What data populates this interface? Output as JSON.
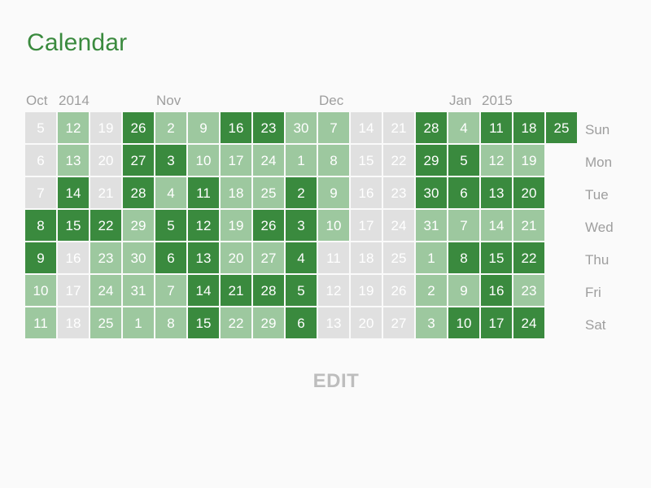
{
  "title": "Calendar",
  "colors": {
    "accent": "#3a8a3e",
    "level_none": "#e0e0e0",
    "level_light": "#9dc89f",
    "level_dark": "#3a8a3e",
    "muted_text": "#9e9e9e",
    "edit_text": "#bdbdbd"
  },
  "month_labels": [
    {
      "text": "Oct",
      "week": 0
    },
    {
      "text": "2014",
      "week": 1
    },
    {
      "text": "Nov",
      "week": 4
    },
    {
      "text": "Dec",
      "week": 9
    },
    {
      "text": "Jan",
      "week": 13
    },
    {
      "text": "2015",
      "week": 14
    }
  ],
  "day_names": [
    "Sun",
    "Mon",
    "Tue",
    "Wed",
    "Thu",
    "Fri",
    "Sat"
  ],
  "weeks": [
    {
      "days": [
        5,
        6,
        7,
        8,
        9,
        10,
        11
      ],
      "levels": [
        0,
        0,
        0,
        2,
        2,
        1,
        1
      ]
    },
    {
      "days": [
        12,
        13,
        14,
        15,
        16,
        17,
        18
      ],
      "levels": [
        1,
        1,
        2,
        2,
        0,
        0,
        0
      ]
    },
    {
      "days": [
        19,
        20,
        21,
        22,
        23,
        24,
        25
      ],
      "levels": [
        0,
        0,
        0,
        2,
        1,
        1,
        1
      ]
    },
    {
      "days": [
        26,
        27,
        28,
        29,
        30,
        31,
        1
      ],
      "levels": [
        2,
        2,
        2,
        1,
        1,
        1,
        1
      ]
    },
    {
      "days": [
        2,
        3,
        4,
        5,
        6,
        7,
        8
      ],
      "levels": [
        1,
        2,
        1,
        2,
        2,
        1,
        1
      ]
    },
    {
      "days": [
        9,
        10,
        11,
        12,
        13,
        14,
        15
      ],
      "levels": [
        1,
        1,
        2,
        2,
        2,
        2,
        2
      ]
    },
    {
      "days": [
        16,
        17,
        18,
        19,
        20,
        21,
        22
      ],
      "levels": [
        2,
        1,
        1,
        1,
        1,
        2,
        1
      ]
    },
    {
      "days": [
        23,
        24,
        25,
        26,
        27,
        28,
        29
      ],
      "levels": [
        2,
        1,
        1,
        2,
        1,
        2,
        1
      ]
    },
    {
      "days": [
        30,
        1,
        2,
        3,
        4,
        5,
        6
      ],
      "levels": [
        1,
        1,
        2,
        2,
        2,
        2,
        2
      ]
    },
    {
      "days": [
        7,
        8,
        9,
        10,
        11,
        12,
        13
      ],
      "levels": [
        1,
        1,
        1,
        1,
        0,
        0,
        0
      ]
    },
    {
      "days": [
        14,
        15,
        16,
        17,
        18,
        19,
        20
      ],
      "levels": [
        0,
        0,
        0,
        0,
        0,
        0,
        0
      ]
    },
    {
      "days": [
        21,
        22,
        23,
        24,
        25,
        26,
        27
      ],
      "levels": [
        0,
        0,
        0,
        0,
        0,
        0,
        0
      ]
    },
    {
      "days": [
        28,
        29,
        30,
        31,
        1,
        2,
        3
      ],
      "levels": [
        2,
        2,
        2,
        1,
        1,
        1,
        1
      ]
    },
    {
      "days": [
        4,
        5,
        6,
        7,
        8,
        9,
        10
      ],
      "levels": [
        1,
        2,
        2,
        1,
        2,
        1,
        2
      ]
    },
    {
      "days": [
        11,
        12,
        13,
        14,
        15,
        16,
        17
      ],
      "levels": [
        2,
        1,
        2,
        1,
        2,
        2,
        2
      ]
    },
    {
      "days": [
        18,
        19,
        20,
        21,
        22,
        23,
        24
      ],
      "levels": [
        2,
        1,
        2,
        1,
        2,
        1,
        2
      ]
    },
    {
      "days": [
        25
      ],
      "levels": [
        2
      ]
    }
  ],
  "edit_label": "EDIT"
}
